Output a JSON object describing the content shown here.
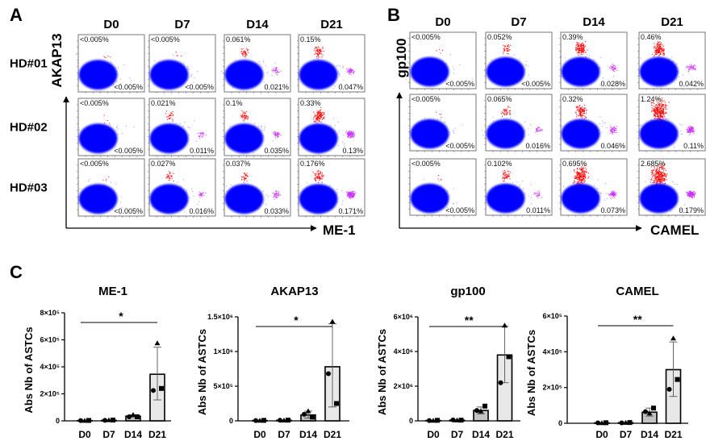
{
  "flow_panels": [
    {
      "letter": "A",
      "columns": [
        "D0",
        "D7",
        "D14",
        "D21"
      ],
      "rows": [
        "HD#01",
        "HD#02",
        "HD#03"
      ],
      "y_marker": "AKAP13",
      "x_marker": "ME-1",
      "plots": [
        [
          {
            "top_left": "<0.005%",
            "bottom_right": "<0.005%"
          },
          {
            "top_left": "<0.005%",
            "bottom_right": "<0.005%"
          },
          {
            "top_left": "0.061%",
            "bottom_right": "0.021%"
          },
          {
            "top_left": "0.15%",
            "bottom_right": "0.047%"
          }
        ],
        [
          {
            "top_left": "<0.005%",
            "bottom_right": "<0.005%"
          },
          {
            "top_left": "0.021%",
            "bottom_right": "0.011%"
          },
          {
            "top_left": "0.1%",
            "bottom_right": "0.035%"
          },
          {
            "top_left": "0.33%",
            "bottom_right": "0.13%"
          }
        ],
        [
          {
            "top_left": "<0.005%",
            "bottom_right": "<0.005%"
          },
          {
            "top_left": "0.027%",
            "bottom_right": "0.016%"
          },
          {
            "top_left": "0.037%",
            "bottom_right": "0.033%"
          },
          {
            "top_left": "0.176%",
            "bottom_right": "0.171%"
          }
        ]
      ]
    },
    {
      "letter": "B",
      "columns": [
        "D0",
        "D7",
        "D14",
        "D21"
      ],
      "rows": [],
      "y_marker": "gp100",
      "x_marker": "CAMEL",
      "plots": [
        [
          {
            "top_left": "<0.005%",
            "bottom_right": "<0.005%"
          },
          {
            "top_left": "0.052%",
            "bottom_right": "<0.005%"
          },
          {
            "top_left": "0.39%",
            "bottom_right": "0.028%"
          },
          {
            "top_left": "0.46%",
            "bottom_right": "0.042%"
          }
        ],
        [
          {
            "top_left": "<0.005%",
            "bottom_right": "<0.005%"
          },
          {
            "top_left": "0.065%",
            "bottom_right": "0.016%"
          },
          {
            "top_left": "0.32%",
            "bottom_right": "0.046%"
          },
          {
            "top_left": "1.24%",
            "bottom_right": "0.11%"
          }
        ],
        [
          {
            "top_left": "<0.005%",
            "bottom_right": "<0.005%"
          },
          {
            "top_left": "0.102%",
            "bottom_right": "0.011%"
          },
          {
            "top_left": "0.695%",
            "bottom_right": "0.073%"
          },
          {
            "top_left": "2.685%",
            "bottom_right": "0.179%"
          }
        ]
      ]
    }
  ],
  "colors": {
    "population": "#0000ff",
    "top_gate": "#ff0000",
    "right_gate": "#cc33ff",
    "bar_fill": "#e8e8e8",
    "d14_fill": "#c4c4c4"
  },
  "panel_c_letter": "C",
  "chart_data": [
    {
      "type": "bar",
      "title": "ME-1",
      "ylabel": "Abs Nb of ASTCs",
      "categories": [
        "D0",
        "D7",
        "D14",
        "D21"
      ],
      "values": [
        2000,
        4000,
        35000,
        345000
      ],
      "error_high": [
        3000,
        6000,
        45000,
        545000
      ],
      "error_low": [
        0,
        2000,
        25000,
        155000
      ],
      "points": {
        "triangle": [
          1000,
          5000,
          45000,
          575000
        ],
        "circle": [
          2000,
          4000,
          30000,
          225000
        ],
        "square": [
          3000,
          6000,
          30000,
          240000
        ]
      },
      "ylim": [
        0,
        800000
      ],
      "yticks": [
        0,
        200000,
        400000,
        600000,
        800000
      ],
      "ytick_labels": [
        "0",
        "2×10⁵",
        "4×10⁵",
        "6×10⁵",
        "8×10⁵"
      ],
      "significance": {
        "from": "D0",
        "to": "D21",
        "label": "*"
      }
    },
    {
      "type": "bar",
      "title": "AKAP13",
      "ylabel": "Abs Nb of ASTCs",
      "categories": [
        "D0",
        "D7",
        "D14",
        "D21"
      ],
      "values": [
        5000,
        8000,
        85000,
        780000
      ],
      "error_high": [
        8000,
        12000,
        140000,
        1400000
      ],
      "error_low": [
        2000,
        4000,
        40000,
        200000
      ],
      "points": {
        "triangle": [
          3000,
          6000,
          140000,
          1430000
        ],
        "circle": [
          5000,
          8000,
          95000,
          680000
        ],
        "square": [
          7000,
          10000,
          55000,
          250000
        ]
      },
      "ylim": [
        0,
        1500000
      ],
      "yticks": [
        0,
        500000,
        1000000,
        1500000
      ],
      "ytick_labels": [
        "0",
        "5×10⁵",
        "1×10⁶",
        "1.5×10⁶"
      ],
      "significance": {
        "from": "D0",
        "to": "D21",
        "label": "*"
      }
    },
    {
      "type": "bar",
      "title": "gp100",
      "ylabel": "Abs Nb of ASTCs",
      "categories": [
        "D0",
        "D7",
        "D14",
        "D21"
      ],
      "values": [
        20000,
        40000,
        600000,
        3800000
      ],
      "error_high": [
        40000,
        60000,
        800000,
        5450000
      ],
      "error_low": [
        0,
        20000,
        400000,
        2200000
      ],
      "points": {
        "triangle": [
          10000,
          30000,
          550000,
          5500000
        ],
        "circle": [
          20000,
          50000,
          600000,
          2200000
        ],
        "square": [
          30000,
          40000,
          850000,
          3700000
        ]
      },
      "ylim": [
        0,
        6000000
      ],
      "yticks": [
        0,
        2000000,
        4000000,
        6000000
      ],
      "ytick_labels": [
        "0",
        "2×10⁶",
        "4×10⁶",
        "6×10⁶"
      ],
      "significance": {
        "from": "D0",
        "to": "D21",
        "label": "**"
      }
    },
    {
      "type": "bar",
      "title": "CAMEL",
      "ylabel": "Abs Nb of ASTCs",
      "categories": [
        "D0",
        "D7",
        "D14",
        "D21"
      ],
      "values": [
        2000,
        3000,
        62000,
        300000
      ],
      "error_high": [
        4000,
        5000,
        85000,
        455000
      ],
      "error_low": [
        0,
        1000,
        40000,
        150000
      ],
      "points": {
        "triangle": [
          1000,
          3000,
          55000,
          475000
        ],
        "circle": [
          2000,
          2000,
          65000,
          190000
        ],
        "square": [
          3000,
          4000,
          85000,
          245000
        ]
      },
      "ylim": [
        0,
        600000
      ],
      "yticks": [
        0,
        200000,
        400000,
        600000
      ],
      "ytick_labels": [
        "0",
        "2×10⁵",
        "4×10⁵",
        "6×10⁵"
      ],
      "significance": {
        "from": "D0",
        "to": "D21",
        "label": "**"
      }
    }
  ]
}
